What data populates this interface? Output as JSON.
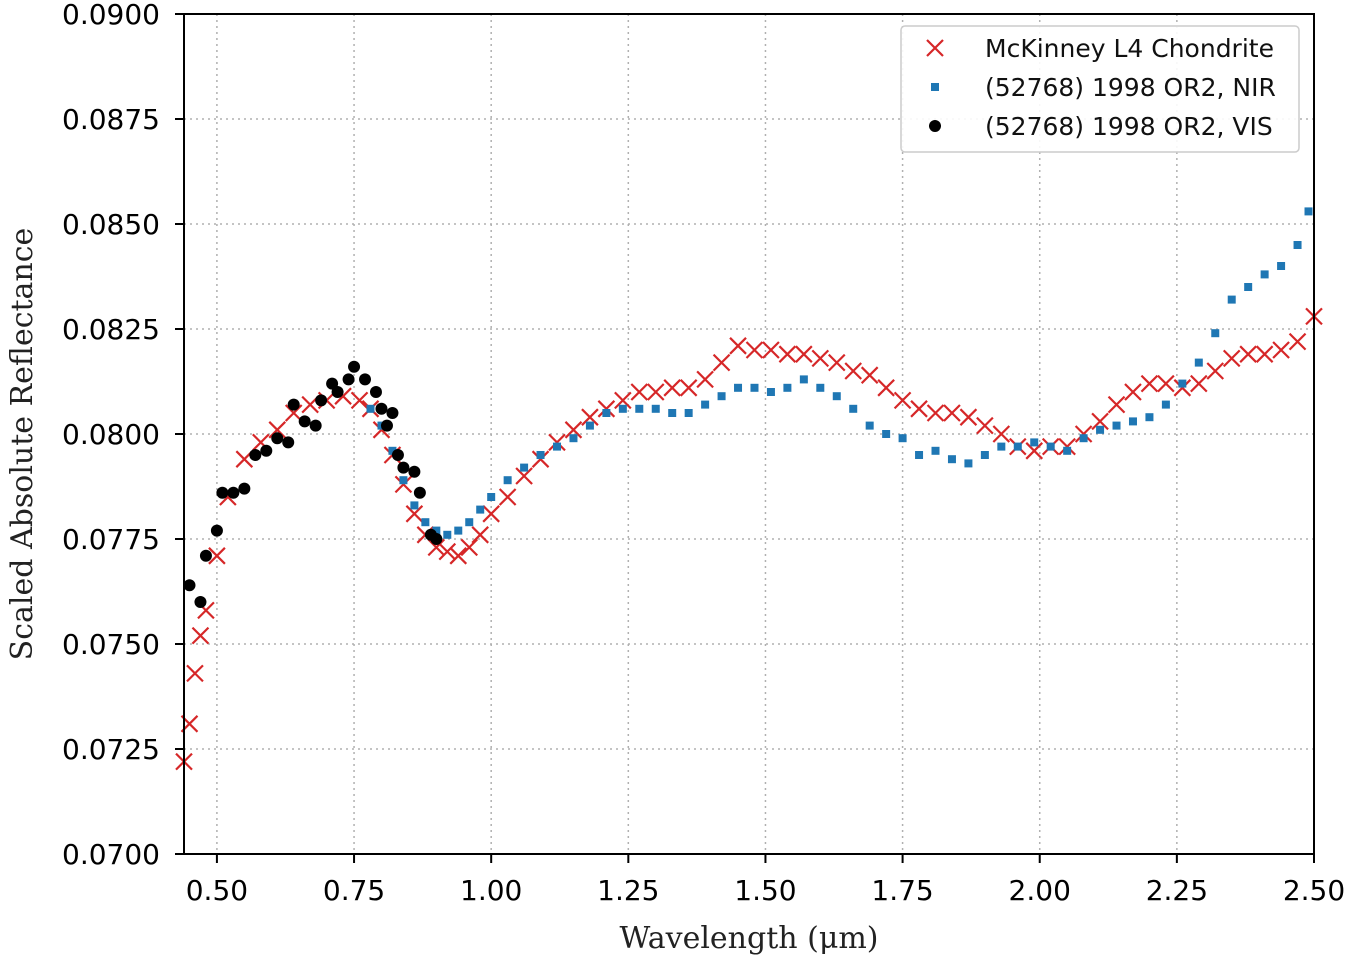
{
  "chart_data": {
    "type": "scatter",
    "title": "",
    "xlabel": "Wavelength (μm)",
    "ylabel": "Scaled Absolute Reflectance",
    "xlim": [
      0.44,
      2.5
    ],
    "ylim": [
      0.07,
      0.09
    ],
    "xticks": [
      "0.50",
      "0.75",
      "1.00",
      "1.25",
      "1.50",
      "1.75",
      "2.00",
      "2.25",
      "2.50"
    ],
    "yticks": [
      "0.0700",
      "0.0725",
      "0.0750",
      "0.0775",
      "0.0800",
      "0.0825",
      "0.0850",
      "0.0875",
      "0.0900"
    ],
    "grid": true,
    "legend_position": "top-right",
    "series": [
      {
        "name": "McKinney L4 Chondrite",
        "marker": "x",
        "color": "#d62728",
        "points": [
          [
            0.44,
            0.0722
          ],
          [
            0.45,
            0.0731
          ],
          [
            0.46,
            0.0743
          ],
          [
            0.47,
            0.0752
          ],
          [
            0.48,
            0.0758
          ],
          [
            0.5,
            0.0771
          ],
          [
            0.52,
            0.0785
          ],
          [
            0.55,
            0.0794
          ],
          [
            0.58,
            0.0798
          ],
          [
            0.61,
            0.0801
          ],
          [
            0.64,
            0.0805
          ],
          [
            0.67,
            0.0807
          ],
          [
            0.7,
            0.0808
          ],
          [
            0.73,
            0.0809
          ],
          [
            0.76,
            0.0808
          ],
          [
            0.78,
            0.0806
          ],
          [
            0.8,
            0.0801
          ],
          [
            0.82,
            0.0795
          ],
          [
            0.84,
            0.0788
          ],
          [
            0.86,
            0.0781
          ],
          [
            0.88,
            0.0776
          ],
          [
            0.9,
            0.0773
          ],
          [
            0.92,
            0.0772
          ],
          [
            0.94,
            0.0771
          ],
          [
            0.96,
            0.0773
          ],
          [
            0.98,
            0.0776
          ],
          [
            1.0,
            0.0781
          ],
          [
            1.03,
            0.0785
          ],
          [
            1.06,
            0.079
          ],
          [
            1.09,
            0.0794
          ],
          [
            1.12,
            0.0798
          ],
          [
            1.15,
            0.0801
          ],
          [
            1.18,
            0.0804
          ],
          [
            1.21,
            0.0806
          ],
          [
            1.24,
            0.0808
          ],
          [
            1.27,
            0.081
          ],
          [
            1.3,
            0.081
          ],
          [
            1.33,
            0.0811
          ],
          [
            1.36,
            0.0811
          ],
          [
            1.39,
            0.0813
          ],
          [
            1.42,
            0.0817
          ],
          [
            1.45,
            0.0821
          ],
          [
            1.48,
            0.082
          ],
          [
            1.51,
            0.082
          ],
          [
            1.54,
            0.0819
          ],
          [
            1.57,
            0.0819
          ],
          [
            1.6,
            0.0818
          ],
          [
            1.63,
            0.0817
          ],
          [
            1.66,
            0.0815
          ],
          [
            1.69,
            0.0814
          ],
          [
            1.72,
            0.0811
          ],
          [
            1.75,
            0.0808
          ],
          [
            1.78,
            0.0806
          ],
          [
            1.81,
            0.0805
          ],
          [
            1.84,
            0.0805
          ],
          [
            1.87,
            0.0804
          ],
          [
            1.9,
            0.0802
          ],
          [
            1.93,
            0.08
          ],
          [
            1.96,
            0.0797
          ],
          [
            1.99,
            0.0796
          ],
          [
            2.02,
            0.0797
          ],
          [
            2.05,
            0.0797
          ],
          [
            2.08,
            0.08
          ],
          [
            2.11,
            0.0803
          ],
          [
            2.14,
            0.0807
          ],
          [
            2.17,
            0.081
          ],
          [
            2.2,
            0.0812
          ],
          [
            2.23,
            0.0812
          ],
          [
            2.26,
            0.0811
          ],
          [
            2.29,
            0.0812
          ],
          [
            2.32,
            0.0815
          ],
          [
            2.35,
            0.0818
          ],
          [
            2.38,
            0.0819
          ],
          [
            2.41,
            0.0819
          ],
          [
            2.44,
            0.082
          ],
          [
            2.47,
            0.0822
          ],
          [
            2.5,
            0.0828
          ]
        ]
      },
      {
        "name": "(52768) 1998 OR2, NIR",
        "marker": "square",
        "color": "#1f77b4",
        "points": [
          [
            0.78,
            0.0806
          ],
          [
            0.8,
            0.0802
          ],
          [
            0.82,
            0.0796
          ],
          [
            0.84,
            0.0789
          ],
          [
            0.86,
            0.0783
          ],
          [
            0.88,
            0.0779
          ],
          [
            0.9,
            0.0777
          ],
          [
            0.92,
            0.0776
          ],
          [
            0.94,
            0.0777
          ],
          [
            0.96,
            0.0779
          ],
          [
            0.98,
            0.0782
          ],
          [
            1.0,
            0.0785
          ],
          [
            1.03,
            0.0789
          ],
          [
            1.06,
            0.0792
          ],
          [
            1.09,
            0.0795
          ],
          [
            1.12,
            0.0797
          ],
          [
            1.15,
            0.0799
          ],
          [
            1.18,
            0.0802
          ],
          [
            1.21,
            0.0805
          ],
          [
            1.24,
            0.0806
          ],
          [
            1.27,
            0.0806
          ],
          [
            1.3,
            0.0806
          ],
          [
            1.33,
            0.0805
          ],
          [
            1.36,
            0.0805
          ],
          [
            1.39,
            0.0807
          ],
          [
            1.42,
            0.0809
          ],
          [
            1.45,
            0.0811
          ],
          [
            1.48,
            0.0811
          ],
          [
            1.51,
            0.081
          ],
          [
            1.54,
            0.0811
          ],
          [
            1.57,
            0.0813
          ],
          [
            1.6,
            0.0811
          ],
          [
            1.63,
            0.0809
          ],
          [
            1.66,
            0.0806
          ],
          [
            1.69,
            0.0802
          ],
          [
            1.72,
            0.08
          ],
          [
            1.75,
            0.0799
          ],
          [
            1.78,
            0.0795
          ],
          [
            1.81,
            0.0796
          ],
          [
            1.84,
            0.0794
          ],
          [
            1.87,
            0.0793
          ],
          [
            1.9,
            0.0795
          ],
          [
            1.93,
            0.0797
          ],
          [
            1.96,
            0.0797
          ],
          [
            1.99,
            0.0798
          ],
          [
            2.02,
            0.0797
          ],
          [
            2.05,
            0.0796
          ],
          [
            2.08,
            0.0799
          ],
          [
            2.11,
            0.0801
          ],
          [
            2.14,
            0.0802
          ],
          [
            2.17,
            0.0803
          ],
          [
            2.2,
            0.0804
          ],
          [
            2.23,
            0.0807
          ],
          [
            2.26,
            0.0812
          ],
          [
            2.29,
            0.0817
          ],
          [
            2.32,
            0.0824
          ],
          [
            2.35,
            0.0832
          ],
          [
            2.38,
            0.0835
          ],
          [
            2.41,
            0.0838
          ],
          [
            2.44,
            0.084
          ],
          [
            2.47,
            0.0845
          ],
          [
            2.49,
            0.0853
          ]
        ]
      },
      {
        "name": "(52768) 1998 OR2, VIS",
        "marker": "circle",
        "color": "#000000",
        "points": [
          [
            0.45,
            0.0764
          ],
          [
            0.47,
            0.076
          ],
          [
            0.48,
            0.0771
          ],
          [
            0.5,
            0.0777
          ],
          [
            0.51,
            0.0786
          ],
          [
            0.53,
            0.0786
          ],
          [
            0.55,
            0.0787
          ],
          [
            0.57,
            0.0795
          ],
          [
            0.59,
            0.0796
          ],
          [
            0.61,
            0.0799
          ],
          [
            0.63,
            0.0798
          ],
          [
            0.64,
            0.0807
          ],
          [
            0.66,
            0.0803
          ],
          [
            0.68,
            0.0802
          ],
          [
            0.69,
            0.0808
          ],
          [
            0.71,
            0.0812
          ],
          [
            0.72,
            0.081
          ],
          [
            0.74,
            0.0813
          ],
          [
            0.75,
            0.0816
          ],
          [
            0.77,
            0.0813
          ],
          [
            0.79,
            0.081
          ],
          [
            0.8,
            0.0806
          ],
          [
            0.81,
            0.0802
          ],
          [
            0.82,
            0.0805
          ],
          [
            0.83,
            0.0795
          ],
          [
            0.84,
            0.0792
          ],
          [
            0.86,
            0.0791
          ],
          [
            0.87,
            0.0786
          ],
          [
            0.89,
            0.0776
          ],
          [
            0.9,
            0.0775
          ]
        ]
      }
    ]
  }
}
